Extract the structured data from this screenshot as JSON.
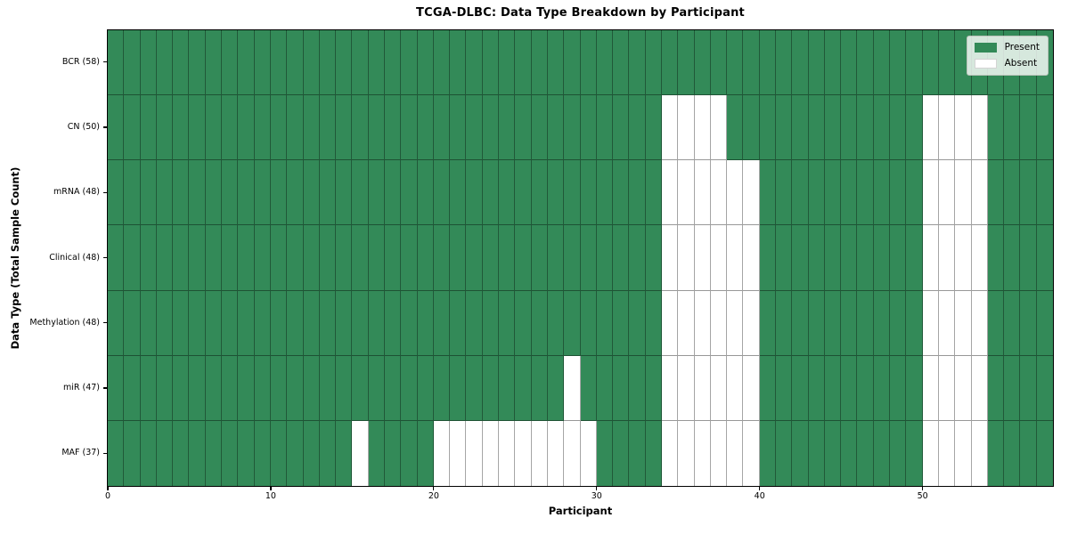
{
  "figure": {
    "title": "TCGA-DLBC: Data Type Breakdown by Participant",
    "xlabel": "Participant",
    "ylabel": "Data Type (Total Sample Count)"
  },
  "legend": {
    "items": [
      {
        "label": "Present",
        "color": "#338a58"
      },
      {
        "label": "Absent",
        "color": "#ffffff"
      }
    ]
  },
  "chart_data": {
    "type": "heatmap",
    "title": "TCGA-DLBC: Data Type Breakdown by Participant",
    "xlabel": "Participant",
    "ylabel": "Data Type (Total Sample Count)",
    "n_participants": 58,
    "x_range": [
      0,
      58
    ],
    "x_ticks": [
      0,
      10,
      20,
      30,
      40,
      50
    ],
    "colors": {
      "present": "#338a58",
      "absent": "#ffffff"
    },
    "legend": [
      "Present",
      "Absent"
    ],
    "legend_position": "upper right",
    "grid": true,
    "rows": [
      {
        "label": "BCR (58)",
        "data_type": "BCR",
        "total_samples": 58,
        "absent_participants": []
      },
      {
        "label": "CN (50)",
        "data_type": "CN",
        "total_samples": 50,
        "absent_participants": [
          34,
          35,
          36,
          37,
          50,
          51,
          52,
          53
        ]
      },
      {
        "label": "mRNA (48)",
        "data_type": "mRNA",
        "total_samples": 48,
        "absent_participants": [
          34,
          35,
          36,
          37,
          38,
          39,
          50,
          51,
          52,
          53
        ]
      },
      {
        "label": "Clinical (48)",
        "data_type": "Clinical",
        "total_samples": 48,
        "absent_participants": [
          34,
          35,
          36,
          37,
          38,
          39,
          50,
          51,
          52,
          53
        ]
      },
      {
        "label": "Methylation (48)",
        "data_type": "Methylation",
        "total_samples": 48,
        "absent_participants": [
          34,
          35,
          36,
          37,
          38,
          39,
          50,
          51,
          52,
          53
        ]
      },
      {
        "label": "miR (47)",
        "data_type": "miR",
        "total_samples": 47,
        "absent_participants": [
          28,
          34,
          35,
          36,
          37,
          38,
          39,
          50,
          51,
          52,
          53
        ]
      },
      {
        "label": "MAF (37)",
        "data_type": "MAF",
        "total_samples": 37,
        "absent_participants": [
          15,
          20,
          21,
          22,
          23,
          24,
          25,
          26,
          27,
          28,
          29,
          34,
          35,
          36,
          37,
          38,
          39,
          50,
          51,
          52,
          53
        ]
      }
    ]
  }
}
